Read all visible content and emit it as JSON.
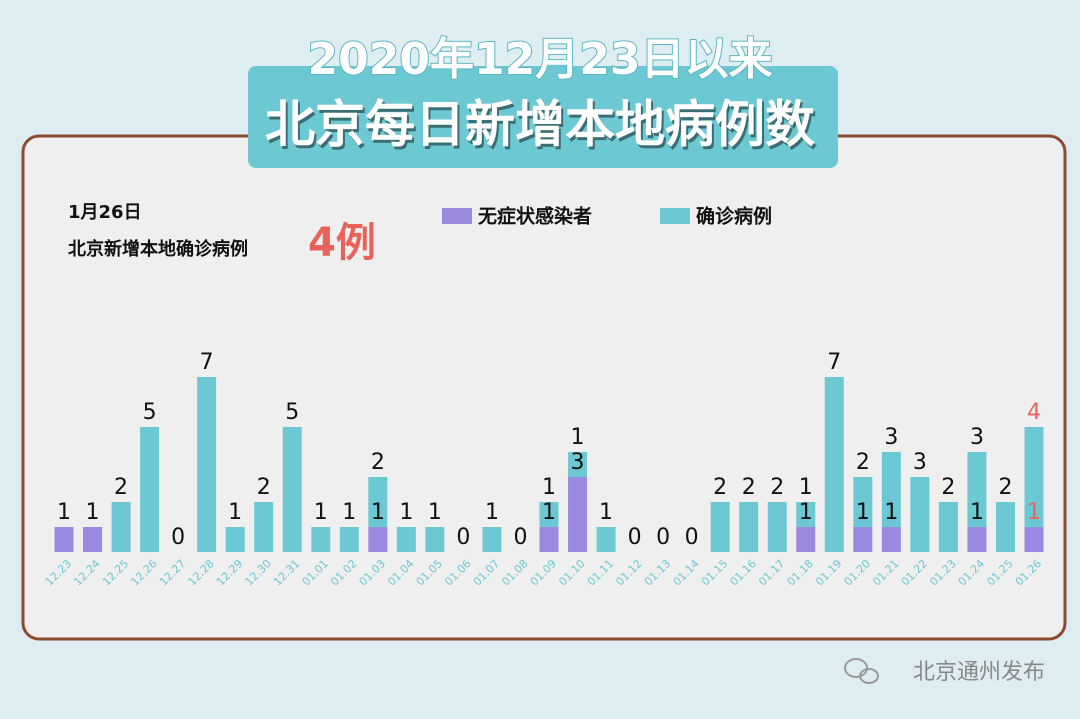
{
  "chart_data": {
    "type": "stacked_bar",
    "title": "2020年12月23日以来",
    "subtitle": "北京每日新增本地病例数",
    "annotation": {
      "date": "1月26日",
      "text": "北京新增本地确诊病例",
      "highlight": "4例"
    },
    "source": "北京通州发布",
    "categories": [
      "12.23",
      "12.24",
      "12.25",
      "12.26",
      "12.27",
      "12.28",
      "12.29",
      "12.30",
      "12.31",
      "01.01",
      "01.02",
      "01.03",
      "01.04",
      "01.05",
      "01.06",
      "01.07",
      "01.08",
      "01.09",
      "01.10",
      "01.11",
      "01.12",
      "01.13",
      "01.14",
      "01.15",
      "01.16",
      "01.17",
      "01.18",
      "01.19",
      "01.20",
      "01.21",
      "01.22",
      "01.23",
      "01.24",
      "01.25",
      "01.26"
    ],
    "series": [
      {
        "name": "无症状感染者",
        "color": "#9b88e0",
        "values": [
          1,
          1,
          0,
          0,
          0,
          0,
          0,
          0,
          0,
          0,
          0,
          1,
          0,
          0,
          0,
          0,
          0,
          1,
          3,
          0,
          0,
          0,
          0,
          0,
          0,
          0,
          1,
          0,
          1,
          1,
          0,
          0,
          1,
          0,
          1
        ]
      },
      {
        "name": "确诊病例",
        "color": "#6cc8d3",
        "values": [
          0,
          0,
          2,
          5,
          0,
          7,
          1,
          2,
          5,
          1,
          1,
          2,
          1,
          1,
          0,
          1,
          0,
          1,
          1,
          1,
          0,
          0,
          0,
          2,
          2,
          2,
          1,
          7,
          2,
          3,
          3,
          2,
          3,
          2,
          4
        ]
      }
    ],
    "highlight_color": "#e8625a"
  }
}
